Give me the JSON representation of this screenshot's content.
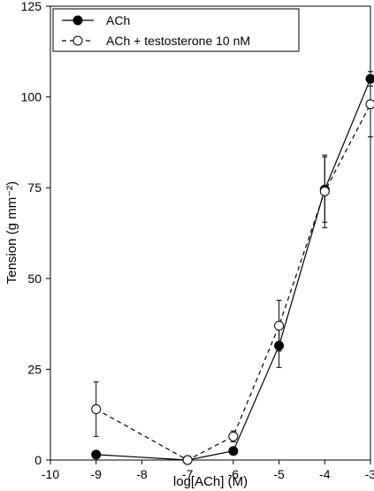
{
  "chart_data": {
    "type": "line",
    "title": "",
    "xlabel": "log[ACh] (M)",
    "ylabel": "Tension (g mm⁻²)",
    "xlim": [
      -10,
      -3
    ],
    "ylim": [
      0,
      125
    ],
    "x_ticks": [
      "-10",
      "-9",
      "-8",
      "-7",
      "-6",
      "-5",
      "-4",
      "-3"
    ],
    "y_ticks": [
      "0",
      "25",
      "50",
      "75",
      "100",
      "125"
    ],
    "grid": false,
    "legend_position": "top-left",
    "series": [
      {
        "name": "ACh",
        "marker": "filled-circle",
        "line_style": "solid",
        "x": [
          -9,
          -7,
          -6,
          -5,
          -4,
          -3
        ],
        "y": [
          1.5,
          0,
          2.5,
          31.5,
          74.5,
          105
        ],
        "err": [
          0,
          0,
          0,
          6,
          9,
          2
        ]
      },
      {
        "name": "ACh + testosterone 10 nM",
        "marker": "open-circle",
        "line_style": "dashed",
        "x": [
          -9,
          -7,
          -6,
          -5,
          -4,
          -3
        ],
        "y": [
          14,
          0,
          6.5,
          37,
          74,
          98
        ],
        "err": [
          7.5,
          0,
          1.5,
          7,
          10,
          9
        ]
      }
    ]
  }
}
